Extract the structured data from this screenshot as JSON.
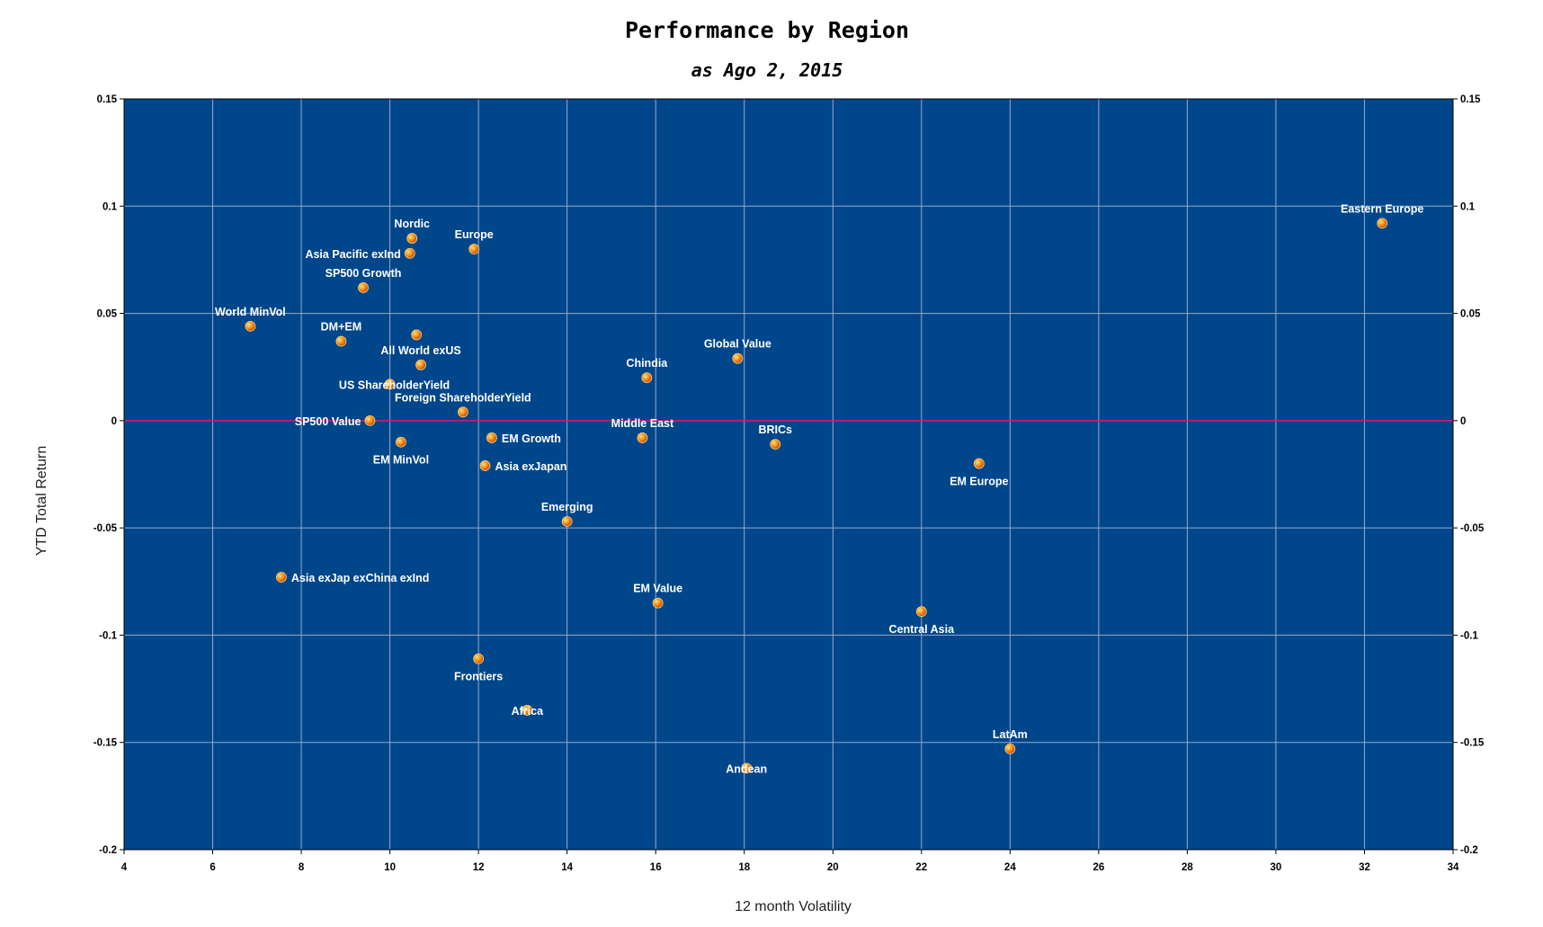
{
  "chart_data": {
    "type": "scatter",
    "title": "Performance by Region",
    "subtitle": "as Ago 2, 2015",
    "xlabel": "12 month Volatility",
    "ylabel": "YTD Total Return",
    "xlim": [
      4,
      34
    ],
    "ylim": [
      -0.2,
      0.15
    ],
    "xticks": [
      "4",
      "6",
      "8",
      "10",
      "12",
      "14",
      "16",
      "18",
      "20",
      "22",
      "24",
      "26",
      "28",
      "30",
      "32",
      "34"
    ],
    "yticks": [
      "0.15",
      "0.1",
      "0.05",
      "0",
      "-0.05",
      "-0.1",
      "-0.15",
      "-0.2"
    ],
    "grid": true,
    "plot_background": "#00468B",
    "grid_color": "#9aa8c8",
    "zero_line_color": "#d02060",
    "marker_color": "#f07a10",
    "points": [
      {
        "label": "Eastern Europe",
        "x": 32.4,
        "y": 0.092,
        "pos": "above"
      },
      {
        "label": "Nordic",
        "x": 10.5,
        "y": 0.085,
        "pos": "above"
      },
      {
        "label": "Europe",
        "x": 11.9,
        "y": 0.08,
        "pos": "above"
      },
      {
        "label": "Asia Pacific exInd",
        "x": 10.45,
        "y": 0.078,
        "pos": "left"
      },
      {
        "label": "SP500 Growth",
        "x": 9.4,
        "y": 0.062,
        "pos": "above"
      },
      {
        "label": "World MinVol",
        "x": 6.85,
        "y": 0.044,
        "pos": "above"
      },
      {
        "label": "DM+EM",
        "x": 8.9,
        "y": 0.037,
        "pos": "above"
      },
      {
        "label": "",
        "x": 10.6,
        "y": 0.04,
        "pos": "none"
      },
      {
        "label": "All World exUS",
        "x": 10.7,
        "y": 0.026,
        "pos": "above"
      },
      {
        "label": "Global Value",
        "x": 17.85,
        "y": 0.029,
        "pos": "above"
      },
      {
        "label": "Chindia",
        "x": 15.8,
        "y": 0.02,
        "pos": "above"
      },
      {
        "label": "US ShareholderYield",
        "x": 10.0,
        "y": 0.017,
        "pos": "none"
      },
      {
        "label": "Foreign ShareholderYield",
        "x": 11.65,
        "y": 0.004,
        "pos": "above"
      },
      {
        "label": "SP500 Value",
        "x": 9.55,
        "y": 0.0,
        "pos": "left"
      },
      {
        "label": "EM MinVol",
        "x": 10.25,
        "y": -0.01,
        "pos": "below"
      },
      {
        "label": "EM Growth",
        "x": 12.3,
        "y": -0.008,
        "pos": "right"
      },
      {
        "label": "Middle East",
        "x": 15.7,
        "y": -0.008,
        "pos": "above"
      },
      {
        "label": "BRICs",
        "x": 18.7,
        "y": -0.011,
        "pos": "above"
      },
      {
        "label": "Asia exJapan",
        "x": 12.15,
        "y": -0.021,
        "pos": "right"
      },
      {
        "label": "EM Europe",
        "x": 23.3,
        "y": -0.02,
        "pos": "below"
      },
      {
        "label": "Emerging",
        "x": 14.0,
        "y": -0.047,
        "pos": "above"
      },
      {
        "label": "Asia exJap exChina exInd",
        "x": 7.55,
        "y": -0.073,
        "pos": "right"
      },
      {
        "label": "EM Value",
        "x": 16.05,
        "y": -0.085,
        "pos": "above"
      },
      {
        "label": "Central Asia",
        "x": 22.0,
        "y": -0.089,
        "pos": "below"
      },
      {
        "label": "Frontiers",
        "x": 12.0,
        "y": -0.111,
        "pos": "below"
      },
      {
        "label": "Africa",
        "x": 13.1,
        "y": -0.135,
        "pos": "center"
      },
      {
        "label": "LatAm",
        "x": 24.0,
        "y": -0.153,
        "pos": "above"
      },
      {
        "label": "Andean",
        "x": 18.05,
        "y": -0.162,
        "pos": "center"
      }
    ]
  }
}
